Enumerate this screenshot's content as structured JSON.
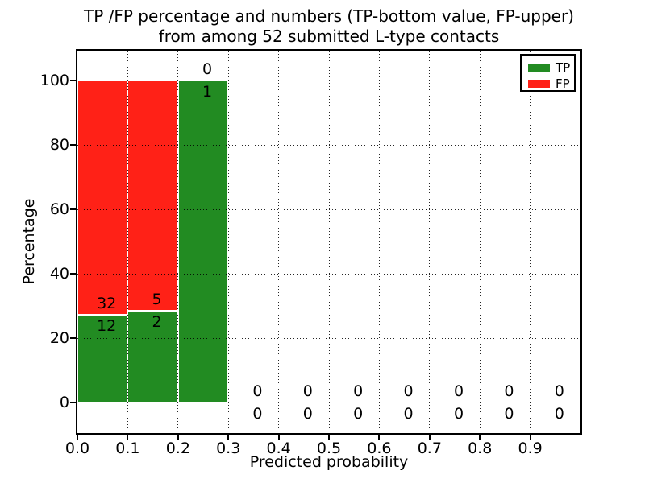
{
  "figure": {
    "title_line1": "TP /FP percentage and numbers (TP-bottom value, FP-upper)",
    "title_line2": "from among 52 submitted L-type contacts",
    "xlabel": "Predicted probability",
    "ylabel": "Percentage"
  },
  "legend": {
    "position": "upper-right",
    "items": [
      {
        "label": "TP",
        "color": "#228b22"
      },
      {
        "label": "FP",
        "color": "#ff2117"
      }
    ]
  },
  "chart_data": {
    "type": "bar",
    "variant": "stacked-percentage-histogram",
    "title": "TP /FP percentage and numbers (TP-bottom value, FP-upper) from among 52 submitted L-type contacts",
    "xlabel": "Predicted probability",
    "ylabel": "Percentage",
    "xlim": [
      0.0,
      1.0
    ],
    "ylim": [
      -9.5,
      109.3
    ],
    "grid": true,
    "grid_style": "dotted",
    "legend_position": "upper right",
    "total_contacts": 52,
    "bar_edge_color": "#ffffff",
    "x_tick_labels": [
      "0.0",
      "0.1",
      "0.2",
      "0.3",
      "0.4",
      "0.5",
      "0.6",
      "0.7",
      "0.8",
      "0.9"
    ],
    "x_tick_values": [
      0.0,
      0.1,
      0.2,
      0.3,
      0.4,
      0.5,
      0.6,
      0.7,
      0.8,
      0.9
    ],
    "y_tick_values": [
      0,
      20,
      40,
      60,
      80,
      100
    ],
    "series": [
      {
        "name": "TP",
        "color": "#228b22",
        "counts": [
          12,
          2,
          1,
          0,
          0,
          0,
          0,
          0,
          0,
          0
        ]
      },
      {
        "name": "FP",
        "color": "#ff2117",
        "counts": [
          32,
          5,
          0,
          0,
          0,
          0,
          0,
          0,
          0,
          0
        ]
      }
    ],
    "bins": [
      {
        "range": [
          0.0,
          0.1
        ],
        "tp_count": 12,
        "fp_count": 32,
        "tp_pct": 27.3,
        "fp_pct": 72.7
      },
      {
        "range": [
          0.1,
          0.2
        ],
        "tp_count": 2,
        "fp_count": 5,
        "tp_pct": 28.6,
        "fp_pct": 71.4
      },
      {
        "range": [
          0.2,
          0.3
        ],
        "tp_count": 1,
        "fp_count": 0,
        "tp_pct": 100.0,
        "fp_pct": 0.0
      },
      {
        "range": [
          0.3,
          0.4
        ],
        "tp_count": 0,
        "fp_count": 0,
        "tp_pct": 0.0,
        "fp_pct": 0.0
      },
      {
        "range": [
          0.4,
          0.5
        ],
        "tp_count": 0,
        "fp_count": 0,
        "tp_pct": 0.0,
        "fp_pct": 0.0
      },
      {
        "range": [
          0.5,
          0.6
        ],
        "tp_count": 0,
        "fp_count": 0,
        "tp_pct": 0.0,
        "fp_pct": 0.0
      },
      {
        "range": [
          0.6,
          0.7
        ],
        "tp_count": 0,
        "fp_count": 0,
        "tp_pct": 0.0,
        "fp_pct": 0.0
      },
      {
        "range": [
          0.7,
          0.8
        ],
        "tp_count": 0,
        "fp_count": 0,
        "tp_pct": 0.0,
        "fp_pct": 0.0
      },
      {
        "range": [
          0.8,
          0.9
        ],
        "tp_count": 0,
        "fp_count": 0,
        "tp_pct": 0.0,
        "fp_pct": 0.0
      },
      {
        "range": [
          0.9,
          1.0
        ],
        "tp_count": 0,
        "fp_count": 0,
        "tp_pct": 0.0,
        "fp_pct": 0.0
      }
    ]
  }
}
